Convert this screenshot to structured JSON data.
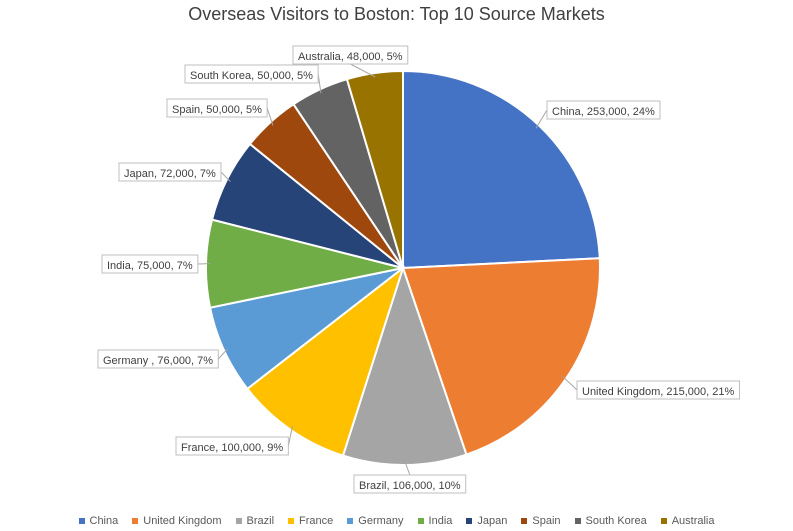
{
  "chart_data": {
    "type": "pie",
    "title": "Overseas Visitors to Boston: Top 10 Source Markets",
    "slices": [
      {
        "name": "China",
        "value": 253000,
        "percent": 24,
        "label": "China, 253,000, 24%",
        "color": "#4472C4"
      },
      {
        "name": "United Kingdom",
        "value": 215000,
        "percent": 21,
        "label": "United Kingdom, 215,000, 21%",
        "color": "#ED7D31"
      },
      {
        "name": "Brazil",
        "value": 106000,
        "percent": 10,
        "label": "Brazil, 106,000, 10%",
        "color": "#A5A5A5"
      },
      {
        "name": "France",
        "value": 100000,
        "percent": 9,
        "label": "France, 100,000, 9%",
        "color": "#FFC000"
      },
      {
        "name": "Germany",
        "value": 76000,
        "percent": 7,
        "label": "Germany , 76,000, 7%",
        "color": "#5B9BD5"
      },
      {
        "name": "India",
        "value": 75000,
        "percent": 7,
        "label": "India, 75,000, 7%",
        "color": "#70AD47"
      },
      {
        "name": "Japan",
        "value": 72000,
        "percent": 7,
        "label": "Japan, 72,000, 7%",
        "color": "#264478"
      },
      {
        "name": "Spain",
        "value": 50000,
        "percent": 5,
        "label": "Spain, 50,000, 5%",
        "color": "#9E480E"
      },
      {
        "name": "South Korea",
        "value": 50000,
        "percent": 5,
        "label": "South Korea, 50,000, 5%",
        "color": "#636363"
      },
      {
        "name": "Australia",
        "value": 48000,
        "percent": 5,
        "label": "Australia, 48,000, 5%",
        "color": "#997300"
      }
    ],
    "legend_position": "bottom"
  }
}
